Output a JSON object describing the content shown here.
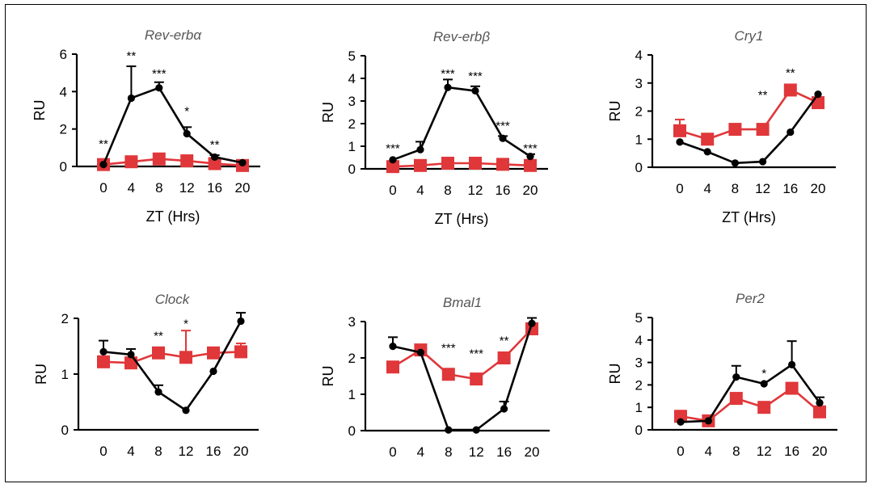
{
  "figure": {
    "colors": {
      "wt": "#000000",
      "ko": "#e0373a"
    }
  },
  "chart_data": [
    {
      "type": "line",
      "title": "Rev-erbα",
      "xlabel": "ZT (Hrs)",
      "ylabel": "RU",
      "x": [
        0,
        4,
        8,
        12,
        16,
        20
      ],
      "ylim": [
        0,
        6
      ],
      "yticks": [
        0,
        2,
        4,
        6
      ],
      "series": [
        {
          "marker": "circle",
          "color": "#000000",
          "values": [
            0.1,
            3.65,
            4.2,
            1.75,
            0.5,
            0.2
          ],
          "errors": [
            0,
            1.7,
            0.3,
            0.35,
            0.1,
            0
          ]
        },
        {
          "marker": "square",
          "color": "#e0373a",
          "values": [
            0.1,
            0.25,
            0.4,
            0.3,
            0.15,
            0.05
          ],
          "errors": [
            0,
            0,
            0,
            0,
            0,
            0
          ]
        }
      ],
      "annotations": [
        {
          "x": 0,
          "y": 1.25,
          "text": "**"
        },
        {
          "x": 4,
          "y": 5.95,
          "text": "**"
        },
        {
          "x": 8,
          "y": 5.0,
          "text": "***"
        },
        {
          "x": 12,
          "y": 3.0,
          "text": "*"
        },
        {
          "x": 16,
          "y": 1.2,
          "text": "**"
        }
      ]
    },
    {
      "type": "line",
      "title": "Rev-erbβ",
      "xlabel": "ZT (Hrs)",
      "ylabel": "RU",
      "x": [
        0,
        4,
        8,
        12,
        16,
        20
      ],
      "ylim": [
        0,
        5
      ],
      "yticks": [
        0,
        1,
        2,
        3,
        4,
        5
      ],
      "series": [
        {
          "marker": "circle",
          "color": "#000000",
          "values": [
            0.4,
            0.85,
            3.6,
            3.45,
            1.35,
            0.55
          ],
          "errors": [
            0,
            0.35,
            0.35,
            0.2,
            0.1,
            0.1
          ]
        },
        {
          "marker": "square",
          "color": "#e0373a",
          "values": [
            0.1,
            0.15,
            0.25,
            0.25,
            0.2,
            0.15
          ],
          "errors": [
            0,
            0,
            0,
            0,
            0,
            0
          ]
        }
      ],
      "annotations": [
        {
          "x": 0,
          "y": 0.95,
          "text": "***"
        },
        {
          "x": 8,
          "y": 4.25,
          "text": "***"
        },
        {
          "x": 12,
          "y": 4.15,
          "text": "***"
        },
        {
          "x": 16,
          "y": 1.95,
          "text": "***"
        },
        {
          "x": 20,
          "y": 0.95,
          "text": "***"
        }
      ]
    },
    {
      "type": "line",
      "title": "Cry1",
      "xlabel": "ZT (Hrs)",
      "ylabel": "RU",
      "x": [
        0,
        4,
        8,
        12,
        16,
        20
      ],
      "ylim": [
        0,
        4
      ],
      "yticks": [
        0,
        1,
        2,
        3,
        4
      ],
      "series": [
        {
          "marker": "circle",
          "color": "#000000",
          "values": [
            0.9,
            0.55,
            0.15,
            0.2,
            1.25,
            2.6
          ],
          "errors": [
            0,
            0,
            0,
            0,
            0,
            0
          ]
        },
        {
          "marker": "square",
          "color": "#e0373a",
          "values": [
            1.3,
            1.0,
            1.35,
            1.35,
            2.75,
            2.3
          ],
          "errors": [
            0.4,
            0.1,
            0.1,
            0,
            0.15,
            0.15
          ]
        }
      ],
      "annotations": [
        {
          "x": 12,
          "y": 2.6,
          "text": "**"
        },
        {
          "x": 16,
          "y": 3.4,
          "text": "**"
        }
      ]
    },
    {
      "type": "line",
      "title": "Clock",
      "xlabel": "",
      "ylabel": "RU",
      "x": [
        0,
        4,
        8,
        12,
        16,
        20
      ],
      "ylim": [
        0,
        2
      ],
      "yticks": [
        0,
        1,
        2
      ],
      "series": [
        {
          "marker": "circle",
          "color": "#000000",
          "values": [
            1.4,
            1.35,
            0.68,
            0.35,
            1.05,
            1.95
          ],
          "errors": [
            0.2,
            0.1,
            0.12,
            0,
            0,
            0.15
          ]
        },
        {
          "marker": "square",
          "color": "#e0373a",
          "values": [
            1.22,
            1.2,
            1.38,
            1.3,
            1.38,
            1.4
          ],
          "errors": [
            0,
            0,
            0,
            0.48,
            0.05,
            0.15
          ]
        }
      ],
      "annotations": [
        {
          "x": 8,
          "y": 1.7,
          "text": "**"
        },
        {
          "x": 12,
          "y": 1.92,
          "text": "*"
        }
      ]
    },
    {
      "type": "line",
      "title": "Bmal1",
      "xlabel": "",
      "ylabel": "RU",
      "x": [
        0,
        4,
        8,
        12,
        16,
        20
      ],
      "ylim": [
        0,
        3
      ],
      "yticks": [
        0,
        1,
        2,
        3
      ],
      "series": [
        {
          "marker": "circle",
          "color": "#000000",
          "values": [
            2.32,
            2.15,
            0.02,
            0.02,
            0.6,
            2.95
          ],
          "errors": [
            0.25,
            0,
            0,
            0,
            0.2,
            0.15
          ]
        },
        {
          "marker": "square",
          "color": "#e0373a",
          "values": [
            1.75,
            2.22,
            1.55,
            1.42,
            2.0,
            2.8
          ],
          "errors": [
            0,
            0,
            0.1,
            0.05,
            0.15,
            0.1
          ]
        }
      ],
      "annotations": [
        {
          "x": 8,
          "y": 2.3,
          "text": "***"
        },
        {
          "x": 12,
          "y": 2.15,
          "text": "***"
        },
        {
          "x": 16,
          "y": 2.5,
          "text": "**"
        }
      ]
    },
    {
      "type": "line",
      "title": "Per2",
      "xlabel": "",
      "ylabel": "RU",
      "x": [
        0,
        4,
        8,
        12,
        16,
        20
      ],
      "ylim": [
        0,
        5
      ],
      "yticks": [
        0,
        1,
        2,
        3,
        4,
        5
      ],
      "series": [
        {
          "marker": "circle",
          "color": "#000000",
          "values": [
            0.35,
            0.4,
            2.35,
            2.05,
            2.9,
            1.2
          ],
          "errors": [
            0,
            0,
            0.5,
            0,
            1.05,
            0.25
          ]
        },
        {
          "marker": "square",
          "color": "#e0373a",
          "values": [
            0.6,
            0.4,
            1.4,
            1.0,
            1.85,
            0.8
          ],
          "errors": [
            0.25,
            0,
            0,
            0,
            0,
            0
          ]
        }
      ],
      "annotations": [
        {
          "x": 12,
          "y": 2.55,
          "text": "*"
        }
      ]
    }
  ]
}
